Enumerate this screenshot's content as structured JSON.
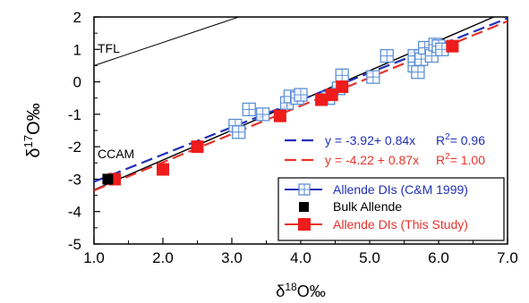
{
  "chart_data": {
    "type": "scatter",
    "xlim": [
      1.0,
      7.0
    ],
    "ylim": [
      -5,
      2
    ],
    "x_ticks": [
      "1.0",
      "2.0",
      "3.0",
      "4.0",
      "5.0",
      "6.0",
      "7.0"
    ],
    "y_ticks": [
      "2",
      "1",
      "0",
      "-1",
      "-2",
      "-3",
      "-4",
      "-5"
    ],
    "xlabel": {
      "delta": "δ",
      "sup": "18",
      "rest": "O‰"
    },
    "ylabel": {
      "delta": "δ",
      "sup": "17",
      "rest": "O‰"
    },
    "grid": false,
    "reference_lines": [
      {
        "label": "TFL",
        "points": [
          [
            1.0,
            0.5
          ],
          [
            3.1,
            2.0
          ]
        ],
        "color": "#000000"
      },
      {
        "label": "CCAM",
        "points": [
          [
            1.0,
            -3.33
          ],
          [
            6.8,
            2.0
          ]
        ],
        "color": "#000000"
      }
    ],
    "fits": [
      {
        "equation": "y = -3.92+ 0.84x",
        "r2_label": "R",
        "r2_sup": "2",
        "r2_value": "= 0.96",
        "intercept": -3.92,
        "slope": 0.84,
        "color": "#1f2fb8"
      },
      {
        "equation": "y = -4.22 + 0.87x",
        "r2_label": "R",
        "r2_sup": "2",
        "r2_value": "= 1.00",
        "intercept": -4.22,
        "slope": 0.87,
        "color": "#e8312a"
      }
    ],
    "series": [
      {
        "name": "Allende DIs (C&M 1999)",
        "marker": "open-square-cross",
        "color": "#5a8fd6",
        "points": [
          [
            3.05,
            -1.35
          ],
          [
            3.1,
            -1.55
          ],
          [
            3.25,
            -0.85
          ],
          [
            3.45,
            -1.0
          ],
          [
            3.8,
            -0.65
          ],
          [
            3.85,
            -0.45
          ],
          [
            3.95,
            -0.5
          ],
          [
            4.0,
            -0.4
          ],
          [
            4.4,
            -0.5
          ],
          [
            4.55,
            -0.2
          ],
          [
            4.6,
            0.2
          ],
          [
            5.05,
            0.15
          ],
          [
            5.25,
            0.8
          ],
          [
            5.65,
            0.5
          ],
          [
            5.65,
            0.8
          ],
          [
            5.7,
            0.3
          ],
          [
            5.75,
            0.7
          ],
          [
            5.8,
            1.05
          ],
          [
            5.9,
            0.8
          ],
          [
            5.95,
            1.15
          ],
          [
            6.0,
            1.1
          ],
          [
            6.05,
            1.0
          ]
        ]
      },
      {
        "name": "Bulk Allende",
        "marker": "filled-square",
        "color": "#000000",
        "points": [
          [
            1.2,
            -3.0
          ]
        ]
      },
      {
        "name": "Allende DIs (This Study)",
        "marker": "filled-square",
        "color": "#ee1c1c",
        "points": [
          [
            1.3,
            -3.0
          ],
          [
            2.0,
            -2.7
          ],
          [
            2.5,
            -2.0
          ],
          [
            3.7,
            -1.05
          ],
          [
            4.3,
            -0.55
          ],
          [
            4.45,
            -0.4
          ],
          [
            4.6,
            -0.15
          ],
          [
            6.2,
            1.1
          ]
        ]
      }
    ]
  }
}
